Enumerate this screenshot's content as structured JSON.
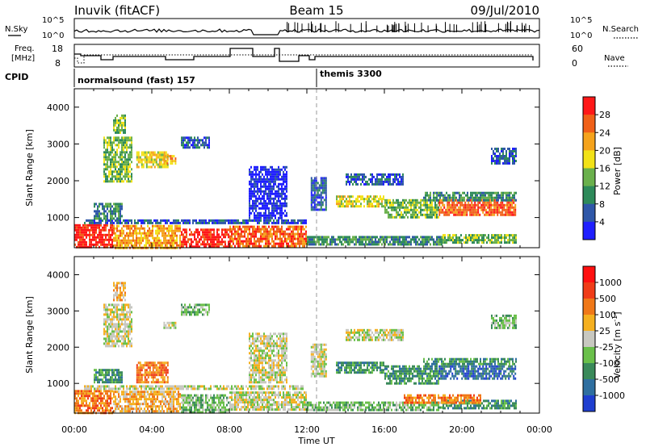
{
  "header": {
    "left_title": "Inuvik (fitACF)",
    "center_title": "Beam 15",
    "right_title": "09/Jul/2010"
  },
  "noise_panel": {
    "left_label": "N.Sky",
    "left_ticks": [
      "10^5",
      "10^0"
    ],
    "right_label": "N.Search",
    "right_ticks": [
      "10^5",
      "10^0"
    ]
  },
  "freq_panel": {
    "left_label_1": "Freq.",
    "left_label_2": "[MHz]",
    "left_ticks": [
      "18",
      "8"
    ],
    "right_label": "Nave",
    "right_ticks": [
      "60",
      "0"
    ]
  },
  "cpid": {
    "label": "CPID",
    "modes": [
      {
        "name": "normalsound (fast) 157",
        "start_hour": 0
      },
      {
        "name": "themis 3300",
        "start_hour": 12
      }
    ]
  },
  "chart_data": [
    {
      "type": "heatmap",
      "title": "Power",
      "ylabel": "Slant Range [km]",
      "xlabel": "Time UT",
      "xlim": [
        0,
        24
      ],
      "ylim": [
        180,
        4500
      ],
      "x_ticks": [
        "00:00",
        "04:00",
        "08:00",
        "12:00",
        "16:00",
        "20:00",
        "00:00"
      ],
      "y_ticks": [
        1000,
        2000,
        3000,
        4000
      ],
      "colorbar": {
        "label": "Power [dB]",
        "ticks": [
          "4",
          "8",
          "12",
          "16",
          "20",
          "24",
          "28"
        ],
        "colors": [
          "#1f1fff",
          "#2f57a8",
          "#2e8a5a",
          "#6ab04c",
          "#f2e218",
          "#f5a31c",
          "#f06018",
          "#ff1818"
        ]
      },
      "regions": [
        {
          "t0": 0.0,
          "t1": 2.0,
          "r0": 200,
          "r1": 820,
          "level": 7
        },
        {
          "t0": 2.0,
          "t1": 5.5,
          "r0": 200,
          "r1": 800,
          "level": 5
        },
        {
          "t0": 5.5,
          "t1": 8.0,
          "r0": 200,
          "r1": 700,
          "level": 7
        },
        {
          "t0": 8.0,
          "t1": 12.0,
          "r0": 250,
          "r1": 780,
          "level": 6
        },
        {
          "t0": 12.0,
          "t1": 19.0,
          "r0": 280,
          "r1": 500,
          "level": 2
        },
        {
          "t0": 19.0,
          "t1": 22.8,
          "r0": 300,
          "r1": 550,
          "level": 3
        },
        {
          "t0": 0.5,
          "t1": 12.0,
          "r0": 850,
          "r1": 950,
          "level": 1
        },
        {
          "t0": 1.0,
          "t1": 2.5,
          "r0": 1000,
          "r1": 1400,
          "level": 2
        },
        {
          "t0": 1.5,
          "t1": 3.0,
          "r0": 2000,
          "r1": 3200,
          "level": 3
        },
        {
          "t0": 2.0,
          "t1": 2.6,
          "r0": 3300,
          "r1": 3800,
          "level": 3
        },
        {
          "t0": 3.2,
          "t1": 4.8,
          "r0": 2400,
          "r1": 2800,
          "level": 4
        },
        {
          "t0": 4.6,
          "t1": 5.2,
          "r0": 2500,
          "r1": 2700,
          "level": 5
        },
        {
          "t0": 5.5,
          "t1": 7.0,
          "r0": 2900,
          "r1": 3200,
          "level": 1
        },
        {
          "t0": 9.0,
          "t1": 11.0,
          "r0": 1000,
          "r1": 2400,
          "level": 0
        },
        {
          "t0": 12.2,
          "t1": 13.0,
          "r0": 1200,
          "r1": 2100,
          "level": 1
        },
        {
          "t0": 13.5,
          "t1": 16.0,
          "r0": 1300,
          "r1": 1600,
          "level": 4
        },
        {
          "t0": 16.0,
          "t1": 18.8,
          "r0": 1000,
          "r1": 1500,
          "level": 3
        },
        {
          "t0": 18.8,
          "t1": 22.8,
          "r0": 1100,
          "r1": 1500,
          "level": 6
        },
        {
          "t0": 18.0,
          "t1": 22.8,
          "r0": 1500,
          "r1": 1700,
          "level": 2
        },
        {
          "t0": 14.0,
          "t1": 17.0,
          "r0": 1900,
          "r1": 2200,
          "level": 1
        },
        {
          "t0": 21.5,
          "t1": 22.8,
          "r0": 2500,
          "r1": 2900,
          "level": 1
        }
      ]
    },
    {
      "type": "heatmap",
      "title": "Velocity",
      "ylabel": "Slant Range [km]",
      "xlabel": "Time UT",
      "xlim": [
        0,
        24
      ],
      "ylim": [
        180,
        4500
      ],
      "x_ticks": [
        "00:00",
        "04:00",
        "08:00",
        "12:00",
        "16:00",
        "20:00",
        "00:00"
      ],
      "y_ticks": [
        1000,
        2000,
        3000,
        4000
      ],
      "colorbar": {
        "label": "Velocity [m s^-1]",
        "ticks": [
          "1000",
          "500",
          "100",
          "25",
          "-25",
          "-100",
          "-500",
          "-1000"
        ],
        "colors": [
          "#1f3fd0",
          "#2f6fa0",
          "#3a8a5a",
          "#6ac04a",
          "#c8c8c0",
          "#f5b020",
          "#f07818",
          "#f03c18",
          "#ff1010"
        ]
      },
      "regions": [
        {
          "t0": 0.0,
          "t1": 2.0,
          "r0": 200,
          "r1": 820,
          "level": 6
        },
        {
          "t0": 2.0,
          "t1": 5.5,
          "r0": 200,
          "r1": 800,
          "level": 5
        },
        {
          "t0": 5.5,
          "t1": 8.0,
          "r0": 200,
          "r1": 700,
          "level": 3
        },
        {
          "t0": 8.0,
          "t1": 12.0,
          "r0": 250,
          "r1": 780,
          "level": 4
        },
        {
          "t0": 12.0,
          "t1": 19.0,
          "r0": 280,
          "r1": 500,
          "level": 3
        },
        {
          "t0": 19.0,
          "t1": 22.8,
          "r0": 300,
          "r1": 550,
          "level": 2
        },
        {
          "t0": 0.5,
          "t1": 12.0,
          "r0": 850,
          "r1": 950,
          "level": 4
        },
        {
          "t0": 1.0,
          "t1": 2.5,
          "r0": 1000,
          "r1": 1400,
          "level": 2
        },
        {
          "t0": 1.5,
          "t1": 3.0,
          "r0": 2000,
          "r1": 3200,
          "level": 4
        },
        {
          "t0": 2.0,
          "t1": 2.6,
          "r0": 3300,
          "r1": 3800,
          "level": 5
        },
        {
          "t0": 3.2,
          "t1": 4.8,
          "r0": 1000,
          "r1": 1600,
          "level": 6
        },
        {
          "t0": 4.6,
          "t1": 5.2,
          "r0": 2500,
          "r1": 2700,
          "level": 4
        },
        {
          "t0": 5.5,
          "t1": 7.0,
          "r0": 2900,
          "r1": 3200,
          "level": 3
        },
        {
          "t0": 9.0,
          "t1": 11.0,
          "r0": 1000,
          "r1": 2400,
          "level": 4
        },
        {
          "t0": 12.2,
          "t1": 13.0,
          "r0": 1200,
          "r1": 2100,
          "level": 4
        },
        {
          "t0": 13.5,
          "t1": 16.0,
          "r0": 1300,
          "r1": 1600,
          "level": 2
        },
        {
          "t0": 16.0,
          "t1": 18.8,
          "r0": 1000,
          "r1": 1500,
          "level": 2
        },
        {
          "t0": 18.8,
          "t1": 22.8,
          "r0": 1100,
          "r1": 1500,
          "level": 1
        },
        {
          "t0": 18.0,
          "t1": 22.8,
          "r0": 1500,
          "r1": 1700,
          "level": 2
        },
        {
          "t0": 14.0,
          "t1": 17.0,
          "r0": 2200,
          "r1": 2500,
          "level": 4
        },
        {
          "t0": 21.5,
          "t1": 22.8,
          "r0": 2500,
          "r1": 2900,
          "level": 3
        },
        {
          "t0": 17.0,
          "t1": 21.0,
          "r0": 450,
          "r1": 700,
          "level": 6
        }
      ]
    }
  ]
}
